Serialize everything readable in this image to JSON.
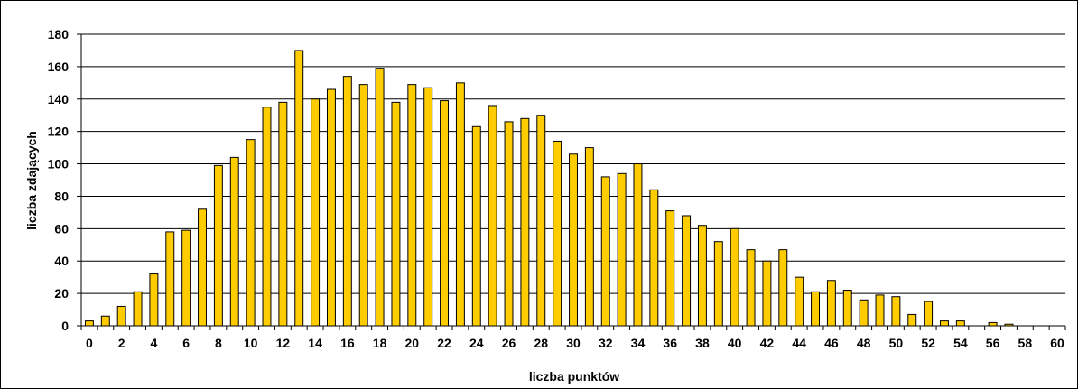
{
  "chart_data": {
    "type": "bar",
    "xlabel": "liczba punktów",
    "ylabel": "liczba zdających",
    "x": [
      0,
      1,
      2,
      3,
      4,
      5,
      6,
      7,
      8,
      9,
      10,
      11,
      12,
      13,
      14,
      15,
      16,
      17,
      18,
      19,
      20,
      21,
      22,
      23,
      24,
      25,
      26,
      27,
      28,
      29,
      30,
      31,
      32,
      33,
      34,
      35,
      36,
      37,
      38,
      39,
      40,
      41,
      42,
      43,
      44,
      45,
      46,
      47,
      48,
      49,
      50,
      51,
      52,
      53,
      54,
      55,
      56,
      57,
      58,
      59,
      60
    ],
    "values": [
      3,
      6,
      12,
      21,
      32,
      58,
      59,
      72,
      99,
      104,
      115,
      135,
      138,
      170,
      140,
      146,
      154,
      149,
      159,
      138,
      149,
      147,
      139,
      150,
      123,
      136,
      126,
      128,
      130,
      114,
      106,
      110,
      92,
      94,
      100,
      84,
      71,
      68,
      62,
      52,
      60,
      47,
      40,
      47,
      30,
      21,
      28,
      22,
      16,
      19,
      18,
      7,
      15,
      3,
      3,
      0,
      2,
      1,
      0,
      0,
      0
    ],
    "xticks": [
      "0",
      "2",
      "4",
      "6",
      "8",
      "10",
      "12",
      "14",
      "16",
      "18",
      "20",
      "22",
      "24",
      "26",
      "28",
      "30",
      "32",
      "34",
      "36",
      "38",
      "40",
      "42",
      "44",
      "46",
      "48",
      "50",
      "52",
      "54",
      "56",
      "58",
      "60"
    ],
    "yticks": [
      "0",
      "20",
      "40",
      "60",
      "80",
      "100",
      "120",
      "140",
      "160",
      "180"
    ],
    "ylim": [
      0,
      180
    ],
    "xlim": [
      0,
      60
    ],
    "grid": "horizontal",
    "bar_color": "#FFCC00",
    "bar_edge_color": "#000000"
  }
}
